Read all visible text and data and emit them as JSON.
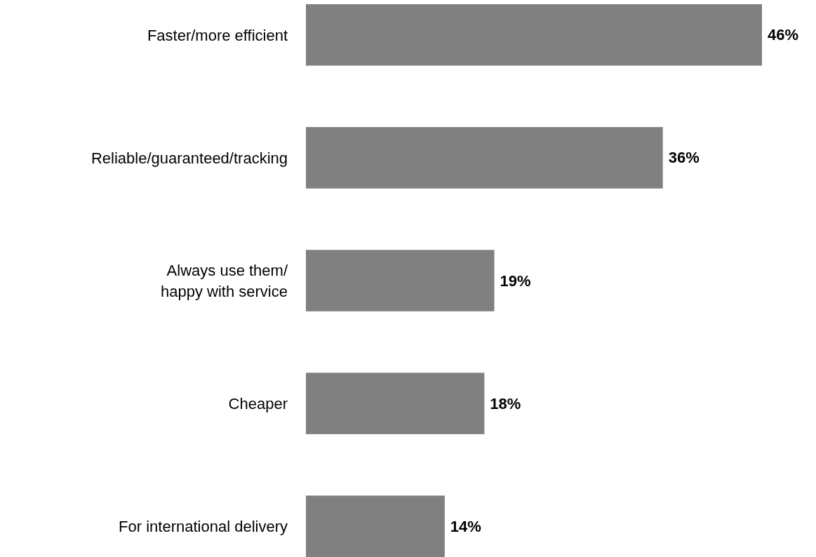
{
  "chart_data": {
    "type": "bar",
    "orientation": "horizontal",
    "categories": [
      "Faster/more efficient",
      "Reliable/guaranteed/tracking",
      "Always use them/\nhappy with service",
      "Cheaper",
      "For international delivery"
    ],
    "values": [
      46,
      36,
      19,
      18,
      14
    ],
    "value_labels": [
      "46%",
      "36%",
      "19%",
      "18%",
      "14%"
    ],
    "color": "#808080"
  }
}
